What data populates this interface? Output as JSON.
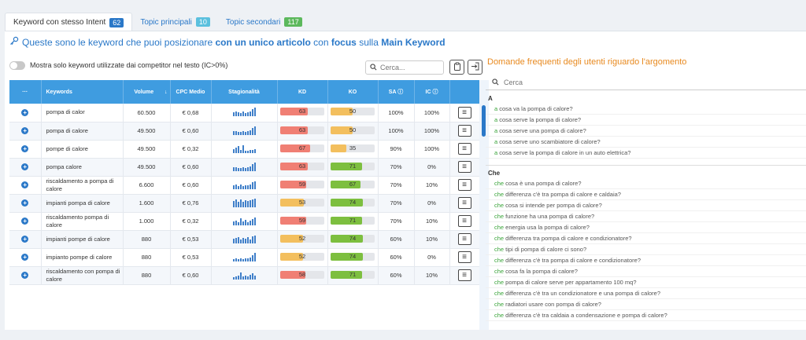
{
  "tabs": [
    {
      "label": "Keyword con stesso Intent",
      "count": "62",
      "badge_color": "#2a78c8"
    },
    {
      "label": "Topic principali",
      "count": "10",
      "badge_color": "#5bc0de"
    },
    {
      "label": "Topic secondari",
      "count": "117",
      "badge_color": "#5cb85c"
    }
  ],
  "headline": {
    "p1": "Queste sono le keyword che puoi posizionare ",
    "b1": "con un unico articolo",
    "p2": " con ",
    "b2": "focus",
    "p3": " sulla ",
    "b3": "Main Keyword"
  },
  "toggle_label": "Mostra solo keyword utilizzate dai competitor nel testo (IC>0%)",
  "search": {
    "placeholder": "Cerca..."
  },
  "table": {
    "headers": {
      "menu": "···",
      "keywords": "Keywords",
      "volume": "Volume",
      "cpc": "CPC Medio",
      "stagionalita": "Stagionalità",
      "kd": "KD",
      "ko": "KO",
      "sa": "SA",
      "ic": "IC"
    },
    "rows": [
      {
        "keyword": "pompa di calor",
        "volume": "60.500",
        "cpc": "€ 0,68",
        "kd": 63,
        "ko": 50,
        "sa": "100%",
        "ic": "100%",
        "spark": [
          5,
          6,
          5,
          4,
          6,
          4,
          5,
          6,
          9,
          11
        ]
      },
      {
        "keyword": "pompa di calore",
        "volume": "49.500",
        "cpc": "€ 0,60",
        "kd": 63,
        "ko": 50,
        "sa": "100%",
        "ic": "100%",
        "spark": [
          5,
          5,
          4,
          4,
          5,
          4,
          5,
          6,
          9,
          11
        ]
      },
      {
        "keyword": "pompe di calore",
        "volume": "49.500",
        "cpc": "€ 0,32",
        "kd": 67,
        "ko": 35,
        "sa": "90%",
        "ic": "100%",
        "spark": [
          5,
          7,
          9,
          4,
          10,
          3,
          3,
          4,
          4,
          5
        ]
      },
      {
        "keyword": "pompa calore",
        "volume": "49.500",
        "cpc": "€ 0,60",
        "kd": 63,
        "ko": 71,
        "sa": "70%",
        "ic": "0%",
        "spark": [
          5,
          5,
          4,
          4,
          5,
          4,
          5,
          6,
          9,
          11
        ]
      },
      {
        "keyword": "riscaldamento a pompa di calore",
        "volume": "6.600",
        "cpc": "€ 0,60",
        "kd": 59,
        "ko": 67,
        "sa": "70%",
        "ic": "10%",
        "spark": [
          5,
          6,
          4,
          6,
          4,
          5,
          5,
          6,
          9,
          10
        ]
      },
      {
        "keyword": "impianti pompa di calore",
        "volume": "1.600",
        "cpc": "€ 0,76",
        "kd": 53,
        "ko": 74,
        "sa": "70%",
        "ic": "0%",
        "spark": [
          8,
          10,
          7,
          10,
          7,
          9,
          8,
          9,
          10,
          11
        ]
      },
      {
        "keyword": "riscaldamento pompa di calore",
        "volume": "1.000",
        "cpc": "€ 0,32",
        "kd": 59,
        "ko": 71,
        "sa": "70%",
        "ic": "10%",
        "spark": [
          5,
          6,
          4,
          9,
          5,
          7,
          4,
          6,
          8,
          10
        ]
      },
      {
        "keyword": "impianti pompe di calore",
        "volume": "880",
        "cpc": "€ 0,53",
        "kd": 52,
        "ko": 74,
        "sa": "60%",
        "ic": "10%",
        "spark": [
          6,
          7,
          8,
          5,
          7,
          6,
          8,
          5,
          9,
          10
        ]
      },
      {
        "keyword": "impianto pompe di calore",
        "volume": "880",
        "cpc": "€ 0,53",
        "kd": 52,
        "ko": 74,
        "sa": "60%",
        "ic": "0%",
        "spark": [
          3,
          4,
          3,
          4,
          3,
          4,
          4,
          5,
          8,
          11
        ]
      },
      {
        "keyword": "riscaldamento con pompa di calore",
        "volume": "880",
        "cpc": "€ 0,60",
        "kd": 58,
        "ko": 71,
        "sa": "60%",
        "ic": "10%",
        "spark": [
          3,
          4,
          5,
          9,
          4,
          5,
          4,
          6,
          8,
          5
        ]
      }
    ]
  },
  "colors": {
    "kd_high": "#f07f74",
    "kd_mid": "#f3bf5e",
    "ko_mid": "#f3bf5e",
    "ko_good": "#7dbf3f",
    "accent": "#2a78c8"
  },
  "faq": {
    "title": "Domande frequenti degli utenti riguardo l'argomento",
    "search_placeholder": "Cerca",
    "groups": [
      {
        "letter": "A",
        "items": [
          {
            "kw": "a",
            "rest": " cosa va la pompa di calore?"
          },
          {
            "kw": "a",
            "rest": " cosa serve la pompa di calore?"
          },
          {
            "kw": "a",
            "rest": " cosa serve una pompa di calore?"
          },
          {
            "kw": "a",
            "rest": " cosa serve uno scambiatore di calore?"
          },
          {
            "kw": "a",
            "rest": " cosa serve la pompa di calore in un auto elettrica?"
          }
        ]
      },
      {
        "letter": "Che",
        "items": [
          {
            "kw": "che",
            "rest": " cosa è una pompa di calore?"
          },
          {
            "kw": "che",
            "rest": " differenza c'è tra pompa di calore e caldaia?"
          },
          {
            "kw": "che",
            "rest": " cosa si intende per pompa di calore?"
          },
          {
            "kw": "che",
            "rest": " funzione ha una pompa di calore?"
          },
          {
            "kw": "che",
            "rest": " energia usa la pompa di calore?"
          },
          {
            "kw": "che",
            "rest": " differenza tra pompa di calore e condizionatore?"
          },
          {
            "kw": "che",
            "rest": " tipi di pompa di calore ci sono?"
          },
          {
            "kw": "che",
            "rest": " differenza c'è tra pompa di calore e condizionatore?"
          },
          {
            "kw": "che",
            "rest": " cosa fa la pompa di calore?"
          },
          {
            "kw": "che",
            "rest": " pompa di calore serve per appartamento 100 mq?"
          },
          {
            "kw": "che",
            "rest": " differenza c'è tra un condizionatore e una pompa di calore?"
          },
          {
            "kw": "che",
            "rest": " radiatori usare con pompa di calore?"
          },
          {
            "kw": "che",
            "rest": " differenza c'è tra caldaia a condensazione e pompa di calore?"
          }
        ]
      }
    ]
  }
}
